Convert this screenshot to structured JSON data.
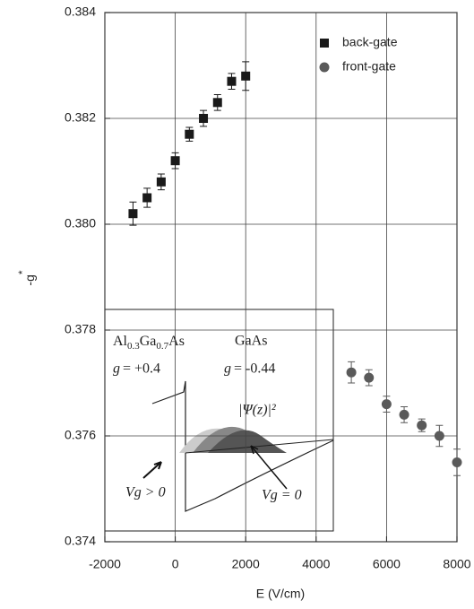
{
  "chart_data": {
    "type": "scatter",
    "x_label": "E (V/cm)",
    "y_label": "-g*",
    "xlim": [
      -2000,
      8000
    ],
    "xticks": [
      -2000,
      0,
      2000,
      4000,
      6000,
      8000
    ],
    "ylim": [
      0.374,
      0.384
    ],
    "yticks": [
      0.374,
      0.376,
      0.378,
      {
        "value": 0.38,
        "label": "0.380"
      },
      0.382,
      0.384
    ],
    "grid": true,
    "legend": "upper right",
    "series": [
      {
        "name": "back-gate",
        "color": "#1a1a1a",
        "marker": "square",
        "x": [
          -1200,
          -800,
          -400,
          0,
          400,
          800,
          1200,
          1600,
          2000
        ],
        "values": [
          0.3802,
          0.3805,
          0.3808,
          0.3812,
          0.3817,
          0.382,
          0.3823,
          0.3827,
          0.3828
        ],
        "errors": [
          0.00022,
          0.00018,
          0.00015,
          0.00015,
          0.00013,
          0.00015,
          0.00015,
          0.00015,
          0.00027
        ]
      },
      {
        "name": "front-gate",
        "color": "#5a5a5a",
        "marker": "circle",
        "x": [
          5000,
          5500,
          6000,
          6500,
          7000,
          7500,
          8000
        ],
        "values": [
          0.3772,
          0.3771,
          0.3766,
          0.3764,
          0.3762,
          0.376,
          0.3755
        ],
        "errors": [
          0.0002,
          0.00015,
          0.00015,
          0.00015,
          0.00012,
          0.0002,
          0.00025
        ]
      }
    ],
    "inset": {
      "left_material": "Al0.3Ga0.7As",
      "right_material": "GaAs",
      "left_g": "= +0.4",
      "right_g": "= -0.44",
      "g_symbol": "g",
      "wavefunction": "|Ψ(z)|²",
      "vg_positive": "Vg > 0",
      "vg_zero": "Vg = 0"
    }
  }
}
